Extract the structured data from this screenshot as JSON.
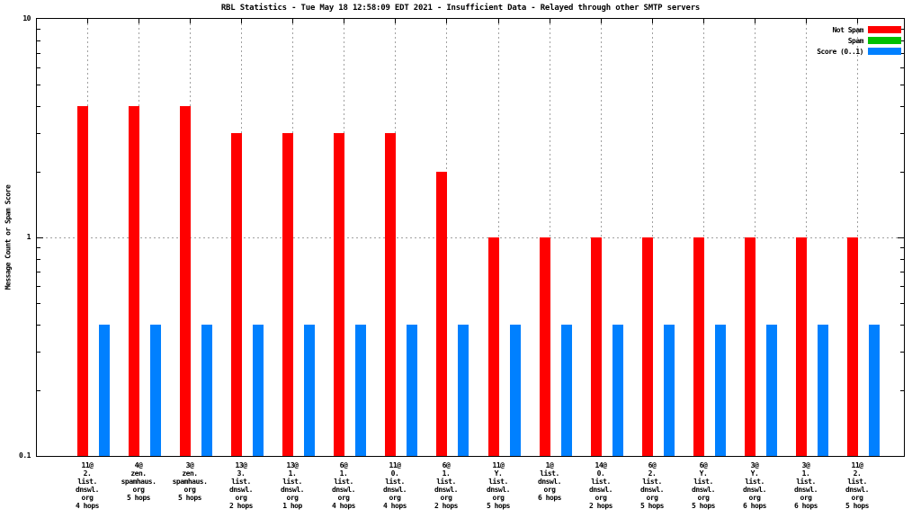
{
  "chart_data": {
    "type": "bar",
    "title": "RBL Statistics - Tue May 18 12:58:09 EDT 2021 - Insufficient Data - Relayed through other SMTP servers",
    "ylabel": "Message Count or Spam Score",
    "xlabel": "",
    "yscale": "log",
    "ylim": [
      0.1,
      10
    ],
    "ytick_labels": [
      {
        "value": 10,
        "label": "10"
      },
      {
        "value": 1,
        "label": "1"
      },
      {
        "value": 0.1,
        "label": "0.1"
      }
    ],
    "y_minor_ticks": [
      0.2,
      0.3,
      0.4,
      0.5,
      0.6,
      0.7,
      0.8,
      0.9,
      2,
      3,
      4,
      5,
      6,
      7,
      8,
      9
    ],
    "grid": true,
    "legend_position": "top-right-inside",
    "categories": [
      [
        "11@",
        "2.",
        "list.",
        "dnswl.",
        "org",
        "4 hops"
      ],
      [
        "4@",
        "zen.",
        "spamhaus.",
        "org",
        "5 hops"
      ],
      [
        "3@",
        "zen.",
        "spamhaus.",
        "org",
        "5 hops"
      ],
      [
        "13@",
        "3.",
        "list.",
        "dnswl.",
        "org",
        "2 hops"
      ],
      [
        "13@",
        "1.",
        "list.",
        "dnswl.",
        "org",
        "1 hop"
      ],
      [
        "6@",
        "1.",
        "list.",
        "dnswl.",
        "org",
        "4 hops"
      ],
      [
        "11@",
        "0.",
        "list.",
        "dnswl.",
        "org",
        "4 hops"
      ],
      [
        "6@",
        "1.",
        "list.",
        "dnswl.",
        "org",
        "2 hops"
      ],
      [
        "11@",
        "Y.",
        "list.",
        "dnswl.",
        "org",
        "5 hops"
      ],
      [
        "1@",
        "list.",
        "dnswl.",
        "org",
        "6 hops"
      ],
      [
        "14@",
        "0.",
        "list.",
        "dnswl.",
        "org",
        "2 hops"
      ],
      [
        "6@",
        "2.",
        "list.",
        "dnswl.",
        "org",
        "5 hops"
      ],
      [
        "6@",
        "Y.",
        "list.",
        "dnswl.",
        "org",
        "5 hops"
      ],
      [
        "3@",
        "Y.",
        "list.",
        "dnswl.",
        "org",
        "6 hops"
      ],
      [
        "3@",
        "1.",
        "list.",
        "dnswl.",
        "org",
        "6 hops"
      ],
      [
        "11@",
        "2.",
        "list.",
        "dnswl.",
        "org",
        "5 hops"
      ]
    ],
    "series": [
      {
        "name": "Not Spam",
        "color": "#ff0000",
        "values": [
          4,
          4,
          4,
          3,
          3,
          3,
          3,
          2,
          1,
          1,
          1,
          1,
          1,
          1,
          1,
          1
        ]
      },
      {
        "name": "Spam",
        "color": "#00c000",
        "values": [
          0,
          0,
          0,
          0,
          0,
          0,
          0,
          0,
          0,
          0,
          0,
          0,
          0,
          0,
          0,
          0
        ]
      },
      {
        "name": "Score (0..1)",
        "color": "#0080ff",
        "values": [
          0.4,
          0.4,
          0.4,
          0.4,
          0.4,
          0.4,
          0.4,
          0.4,
          0.4,
          0.4,
          0.4,
          0.4,
          0.4,
          0.4,
          0.4,
          0.4
        ]
      }
    ],
    "colors": {
      "grid": "#a0a0a0",
      "axis": "#000000",
      "background": "#ffffff"
    }
  }
}
